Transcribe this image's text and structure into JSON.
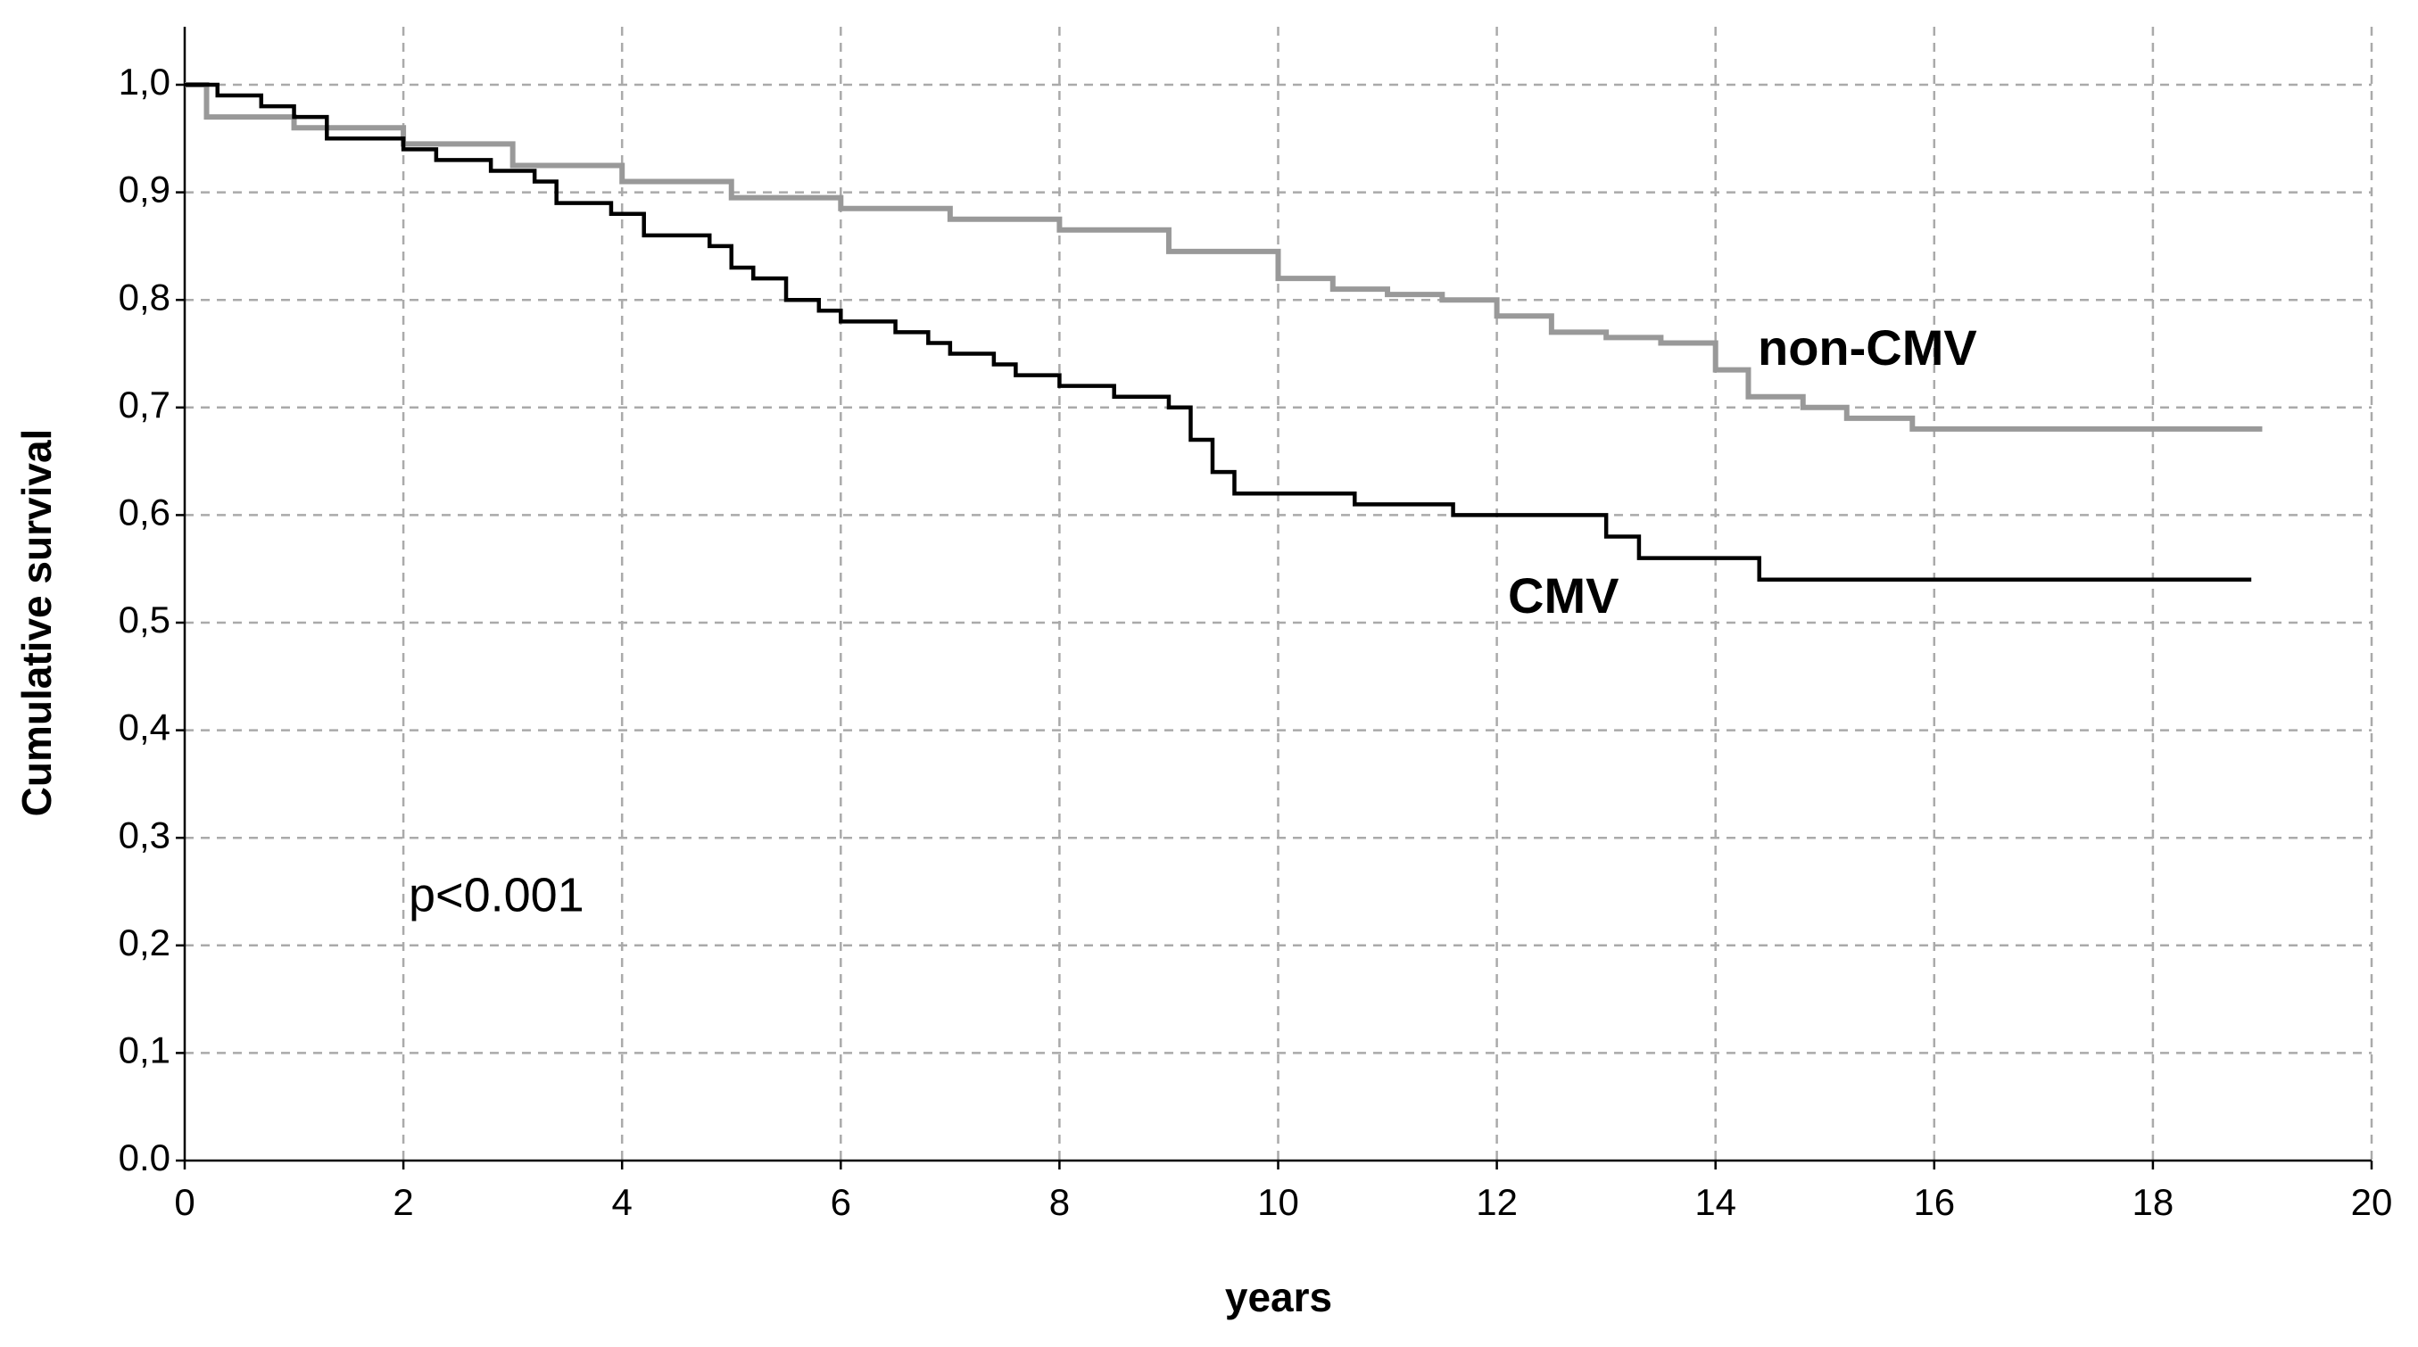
{
  "chart_data": {
    "type": "step",
    "y_label": "Cumulative survival",
    "x_label": "years",
    "annotation": "p<0.001",
    "xlim": [
      0,
      20
    ],
    "xticks": [
      0,
      2,
      4,
      6,
      8,
      10,
      12,
      14,
      16,
      18,
      20
    ],
    "ylim": [
      0,
      1
    ],
    "yticks": [
      {
        "value": 0,
        "label": "0.0"
      },
      {
        "value": 0.1,
        "label": "0,1"
      },
      {
        "value": 0.2,
        "label": "0,2"
      },
      {
        "value": 0.3,
        "label": "0,3"
      },
      {
        "value": 0.4,
        "label": "0,4"
      },
      {
        "value": 0.5,
        "label": "0,5"
      },
      {
        "value": 0.6,
        "label": "0,6"
      },
      {
        "value": 0.7,
        "label": "0,7"
      },
      {
        "value": 0.8,
        "label": "0,8"
      },
      {
        "value": 0.9,
        "label": "0,9"
      },
      {
        "value": 1,
        "label": "1,0"
      }
    ],
    "grid": true,
    "series": [
      {
        "name": "non-CMV",
        "color": "#999999",
        "label_color": "#5c6565",
        "x": [
          0,
          0.2,
          1,
          2,
          3,
          4,
          5,
          6,
          7,
          8,
          9,
          10,
          10.5,
          11,
          11.5,
          12,
          12.5,
          13,
          13.5,
          14,
          14.3,
          14.8,
          15.2,
          15.8,
          19
        ],
        "values": [
          1.0,
          0.97,
          0.96,
          0.945,
          0.925,
          0.91,
          0.895,
          0.885,
          0.875,
          0.865,
          0.845,
          0.82,
          0.81,
          0.805,
          0.8,
          0.785,
          0.77,
          0.765,
          0.76,
          0.735,
          0.71,
          0.7,
          0.69,
          0.68,
          0.68
        ]
      },
      {
        "name": "CMV",
        "color": "#000000",
        "label_color": "#000000",
        "x": [
          0,
          0.3,
          0.7,
          1.0,
          1.3,
          2.0,
          2.3,
          2.8,
          3.2,
          3.4,
          3.9,
          4.2,
          4.8,
          5.0,
          5.2,
          5.5,
          5.8,
          6.0,
          6.5,
          6.8,
          7.0,
          7.4,
          7.6,
          8.0,
          8.5,
          9.0,
          9.2,
          9.4,
          9.6,
          10.7,
          11.6,
          13.0,
          13.3,
          14.4,
          18.9
        ],
        "values": [
          1.0,
          0.99,
          0.98,
          0.97,
          0.95,
          0.94,
          0.93,
          0.92,
          0.91,
          0.89,
          0.88,
          0.86,
          0.85,
          0.83,
          0.82,
          0.8,
          0.79,
          0.78,
          0.77,
          0.76,
          0.75,
          0.74,
          0.73,
          0.72,
          0.71,
          0.7,
          0.67,
          0.64,
          0.62,
          0.61,
          0.6,
          0.58,
          0.56,
          0.54,
          0.54
        ]
      }
    ]
  }
}
